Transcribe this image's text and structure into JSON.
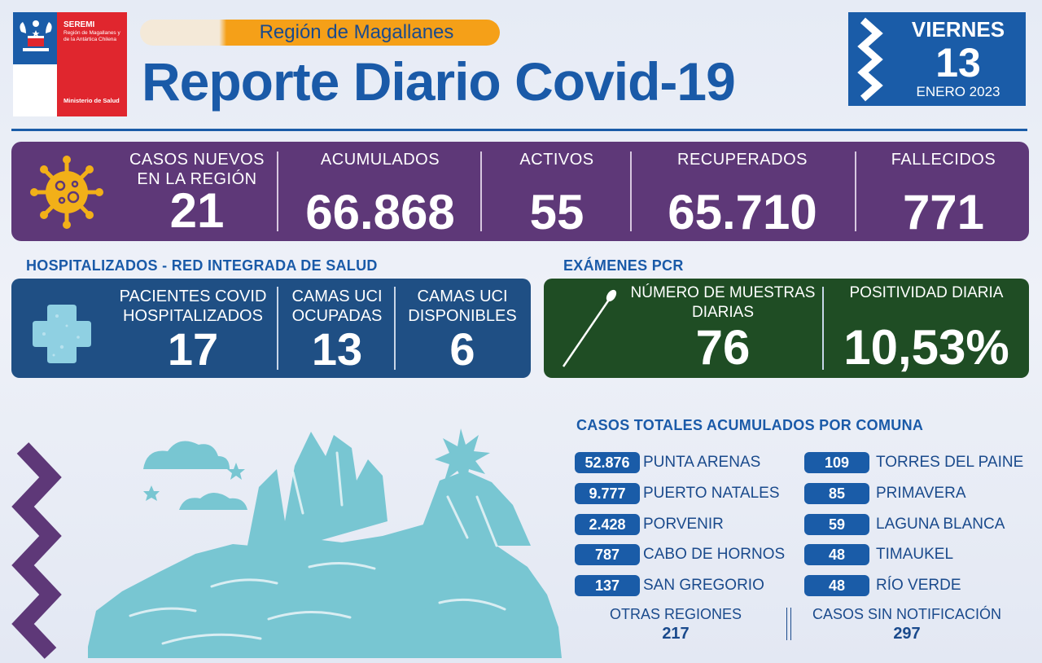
{
  "header": {
    "logo": {
      "org": "SEREMI",
      "region_text": "Región de Magallanes y de la Antártica Chilena",
      "ministry": "Ministerio de Salud"
    },
    "region_label": "Región de Magallanes",
    "title": "Reporte Diario Covid-19",
    "date": {
      "weekday": "VIERNES",
      "day": "13",
      "month_year": "ENERO 2023"
    }
  },
  "stats": {
    "new_cases_label": "CASOS NUEVOS EN LA REGIÓN",
    "new_cases": "21",
    "accumulated_label": "ACUMULADOS",
    "accumulated": "66.868",
    "active_label": "ACTIVOS",
    "active": "55",
    "recovered_label": "RECUPERADOS",
    "recovered": "65.710",
    "deceased_label": "FALLECIDOS",
    "deceased": "771"
  },
  "hospital": {
    "title": "HOSPITALIZADOS - RED INTEGRADA DE SALUD",
    "patients_label": "PACIENTES COVID HOSPITALIZADOS",
    "patients": "17",
    "uci_occupied_label": "CAMAS UCI OCUPADAS",
    "uci_occupied": "13",
    "uci_available_label": "CAMAS UCI DISPONIBLES",
    "uci_available": "6"
  },
  "pcr": {
    "title": "EXÁMENES PCR",
    "samples_label": "NÚMERO DE MUESTRAS DIARIAS",
    "samples": "76",
    "positivity_label": "POSITIVIDAD DIARIA",
    "positivity": "10,53%"
  },
  "comunas": {
    "title": "CASOS TOTALES ACUMULADOS POR COMUNA",
    "left": [
      {
        "count": "52.876",
        "name": "PUNTA ARENAS"
      },
      {
        "count": "9.777",
        "name": "PUERTO NATALES"
      },
      {
        "count": "2.428",
        "name": "PORVENIR"
      },
      {
        "count": "787",
        "name": "CABO DE HORNOS"
      },
      {
        "count": "137",
        "name": "SAN GREGORIO"
      }
    ],
    "right": [
      {
        "count": "109",
        "name": "TORRES DEL PAINE"
      },
      {
        "count": "85",
        "name": "PRIMAVERA"
      },
      {
        "count": "59",
        "name": "LAGUNA BLANCA"
      },
      {
        "count": "48",
        "name": "TIMAUKEL"
      },
      {
        "count": "48",
        "name": "RÍO VERDE"
      }
    ],
    "other_regions_label": "OTRAS REGIONES",
    "other_regions": "217",
    "no_notification_label": "CASOS SIN NOTIFICACIÓN",
    "no_notification": "297"
  },
  "icons": {
    "logo": "chile-coat-of-arms-icon",
    "virus": "virus-icon",
    "cross": "medical-cross-icon",
    "swab": "pcr-swab-icon",
    "illustration": "torres-del-paine-mountains-illustration"
  },
  "colors": {
    "primary_blue": "#1a5ca8",
    "purple": "#5e3878",
    "hospital_blue": "#1f4f84",
    "pcr_green": "#1f4d24",
    "accent_orange": "#f5a018",
    "logo_red": "#e0262e",
    "mountain": "#78c6d2"
  }
}
